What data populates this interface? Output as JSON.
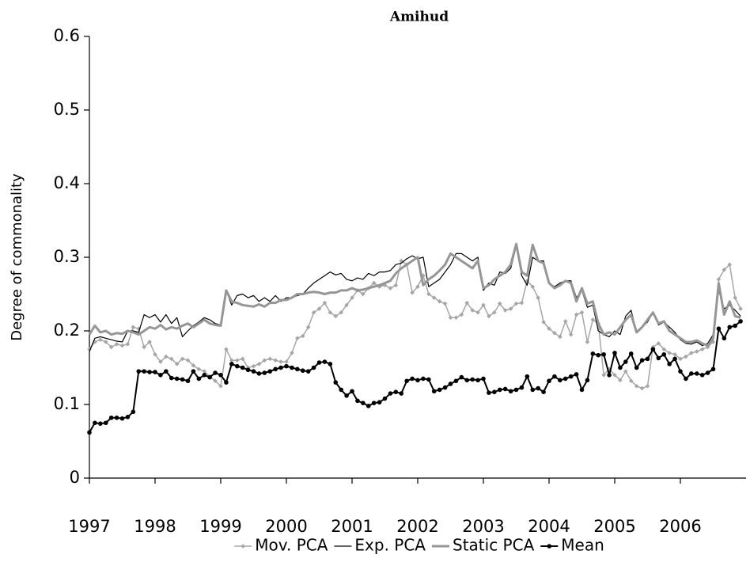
{
  "chart_data": {
    "type": "line",
    "title": "Amihud",
    "y_label": "Degree of commonality",
    "categories": [
      "1997",
      null,
      null,
      null,
      null,
      null,
      null,
      null,
      null,
      null,
      null,
      null,
      "1998",
      null,
      null,
      null,
      null,
      null,
      null,
      null,
      null,
      null,
      null,
      null,
      "1999",
      null,
      null,
      null,
      null,
      null,
      null,
      null,
      null,
      null,
      null,
      null,
      "2000",
      null,
      null,
      null,
      null,
      null,
      null,
      null,
      null,
      null,
      null,
      null,
      "2001",
      null,
      null,
      null,
      null,
      null,
      null,
      null,
      null,
      null,
      null,
      null,
      "2002",
      null,
      null,
      null,
      null,
      null,
      null,
      null,
      null,
      null,
      null,
      null,
      "2003",
      null,
      null,
      null,
      null,
      null,
      null,
      null,
      null,
      null,
      null,
      null,
      "2004",
      null,
      null,
      null,
      null,
      null,
      null,
      null,
      null,
      null,
      null,
      null,
      "2005",
      null,
      null,
      null,
      null,
      null,
      null,
      null,
      null,
      null,
      null,
      null,
      "2006",
      null,
      null,
      null,
      null,
      null,
      null,
      null,
      null,
      null,
      null,
      null
    ],
    "ylim": [
      0,
      0.6
    ],
    "yticks": [
      0,
      0.1,
      0.2,
      0.3,
      0.4,
      0.5,
      0.6
    ],
    "legend": "bottom",
    "series": [
      {
        "name": "Mov. PCA",
        "color": "#a6a6a6",
        "marker": "diamond",
        "line_width": 1.5,
        "values": [
          0.175,
          0.185,
          0.188,
          0.185,
          0.178,
          0.182,
          0.18,
          0.182,
          0.205,
          0.203,
          0.178,
          0.185,
          0.168,
          0.158,
          0.165,
          0.162,
          0.155,
          0.162,
          0.16,
          0.153,
          0.148,
          0.145,
          0.138,
          0.132,
          0.125,
          0.175,
          0.16,
          0.16,
          0.162,
          0.15,
          0.152,
          0.155,
          0.16,
          0.162,
          0.16,
          0.158,
          0.158,
          0.17,
          0.19,
          0.193,
          0.205,
          0.225,
          0.23,
          0.238,
          0.225,
          0.22,
          0.225,
          0.235,
          0.245,
          0.255,
          0.25,
          0.258,
          0.265,
          0.26,
          0.262,
          0.258,
          0.262,
          0.295,
          0.29,
          0.252,
          0.26,
          0.275,
          0.25,
          0.245,
          0.24,
          0.237,
          0.218,
          0.218,
          0.222,
          0.238,
          0.228,
          0.225,
          0.235,
          0.22,
          0.225,
          0.237,
          0.228,
          0.23,
          0.237,
          0.238,
          0.268,
          0.26,
          0.245,
          0.212,
          0.203,
          0.197,
          0.192,
          0.213,
          0.195,
          0.222,
          0.225,
          0.185,
          0.215,
          0.21,
          0.14,
          0.148,
          0.14,
          0.133,
          0.145,
          0.132,
          0.125,
          0.122,
          0.125,
          0.178,
          0.183,
          0.175,
          0.17,
          0.168,
          0.162,
          0.165,
          0.17,
          0.172,
          0.175,
          0.178,
          0.185,
          0.27,
          0.283,
          0.29,
          0.245,
          0.23
        ]
      },
      {
        "name": "Exp. PCA",
        "color": "#000000",
        "marker": null,
        "line_width": 1.2,
        "values": [
          0.172,
          0.19,
          0.192,
          0.19,
          0.188,
          0.186,
          0.185,
          0.2,
          0.2,
          0.198,
          0.222,
          0.218,
          0.222,
          0.212,
          0.222,
          0.21,
          0.218,
          0.192,
          0.2,
          0.207,
          0.212,
          0.218,
          0.215,
          0.21,
          0.208,
          0.255,
          0.235,
          0.248,
          0.25,
          0.245,
          0.248,
          0.24,
          0.245,
          0.24,
          0.248,
          0.24,
          0.245,
          0.245,
          0.248,
          0.25,
          0.258,
          0.265,
          0.27,
          0.275,
          0.28,
          0.276,
          0.278,
          0.27,
          0.268,
          0.272,
          0.27,
          0.278,
          0.275,
          0.28,
          0.28,
          0.282,
          0.29,
          0.292,
          0.298,
          0.302,
          0.298,
          0.3,
          0.26,
          0.265,
          0.27,
          0.28,
          0.29,
          0.305,
          0.305,
          0.3,
          0.295,
          0.3,
          0.255,
          0.265,
          0.262,
          0.28,
          0.278,
          0.285,
          0.315,
          0.275,
          0.262,
          0.3,
          0.295,
          0.295,
          0.265,
          0.26,
          0.265,
          0.268,
          0.268,
          0.245,
          0.255,
          0.232,
          0.235,
          0.2,
          0.195,
          0.192,
          0.2,
          0.195,
          0.22,
          0.228,
          0.198,
          0.205,
          0.212,
          0.225,
          0.208,
          0.212,
          0.205,
          0.198,
          0.188,
          0.183,
          0.182,
          0.185,
          0.18,
          0.183,
          0.195,
          0.255,
          0.23,
          0.235,
          0.228,
          0.22
        ]
      },
      {
        "name": "Static PCA",
        "color": "#969696",
        "marker": null,
        "line_width": 3,
        "values": [
          0.195,
          0.207,
          0.198,
          0.2,
          0.195,
          0.197,
          0.196,
          0.2,
          0.198,
          0.195,
          0.2,
          0.205,
          0.203,
          0.208,
          0.202,
          0.205,
          0.203,
          0.207,
          0.21,
          0.205,
          0.21,
          0.215,
          0.21,
          0.208,
          0.207,
          0.255,
          0.24,
          0.238,
          0.235,
          0.234,
          0.233,
          0.236,
          0.233,
          0.238,
          0.238,
          0.242,
          0.242,
          0.245,
          0.25,
          0.25,
          0.252,
          0.253,
          0.252,
          0.25,
          0.252,
          0.252,
          0.255,
          0.255,
          0.258,
          0.255,
          0.256,
          0.258,
          0.26,
          0.262,
          0.265,
          0.268,
          0.278,
          0.285,
          0.29,
          0.295,
          0.3,
          0.262,
          0.27,
          0.275,
          0.282,
          0.29,
          0.305,
          0.3,
          0.295,
          0.29,
          0.285,
          0.295,
          0.258,
          0.262,
          0.27,
          0.275,
          0.28,
          0.29,
          0.318,
          0.28,
          0.275,
          0.317,
          0.295,
          0.292,
          0.265,
          0.258,
          0.262,
          0.268,
          0.265,
          0.24,
          0.258,
          0.237,
          0.24,
          0.21,
          0.195,
          0.198,
          0.195,
          0.205,
          0.215,
          0.222,
          0.198,
          0.205,
          0.215,
          0.225,
          0.21,
          0.213,
          0.2,
          0.195,
          0.19,
          0.185,
          0.185,
          0.187,
          0.183,
          0.18,
          0.19,
          0.265,
          0.222,
          0.24,
          0.22,
          0.218
        ]
      },
      {
        "name": "Mean",
        "color": "#000000",
        "marker": "circle",
        "line_width": 2,
        "values": [
          0.062,
          0.075,
          0.074,
          0.075,
          0.082,
          0.082,
          0.081,
          0.083,
          0.09,
          0.145,
          0.145,
          0.144,
          0.144,
          0.14,
          0.145,
          0.136,
          0.135,
          0.134,
          0.132,
          0.145,
          0.135,
          0.14,
          0.137,
          0.143,
          0.14,
          0.13,
          0.155,
          0.152,
          0.15,
          0.147,
          0.145,
          0.142,
          0.143,
          0.145,
          0.148,
          0.15,
          0.152,
          0.15,
          0.148,
          0.146,
          0.145,
          0.15,
          0.157,
          0.158,
          0.155,
          0.13,
          0.12,
          0.112,
          0.118,
          0.105,
          0.102,
          0.098,
          0.102,
          0.103,
          0.108,
          0.115,
          0.117,
          0.115,
          0.132,
          0.135,
          0.133,
          0.135,
          0.134,
          0.118,
          0.12,
          0.123,
          0.128,
          0.132,
          0.137,
          0.133,
          0.134,
          0.133,
          0.135,
          0.116,
          0.117,
          0.12,
          0.121,
          0.118,
          0.12,
          0.123,
          0.138,
          0.12,
          0.122,
          0.117,
          0.132,
          0.138,
          0.133,
          0.135,
          0.138,
          0.141,
          0.12,
          0.133,
          0.169,
          0.167,
          0.168,
          0.14,
          0.17,
          0.15,
          0.158,
          0.169,
          0.15,
          0.16,
          0.162,
          0.175,
          0.163,
          0.168,
          0.155,
          0.162,
          0.145,
          0.135,
          0.142,
          0.142,
          0.14,
          0.143,
          0.148,
          0.203,
          0.19,
          0.205,
          0.207,
          0.213
        ]
      }
    ]
  }
}
